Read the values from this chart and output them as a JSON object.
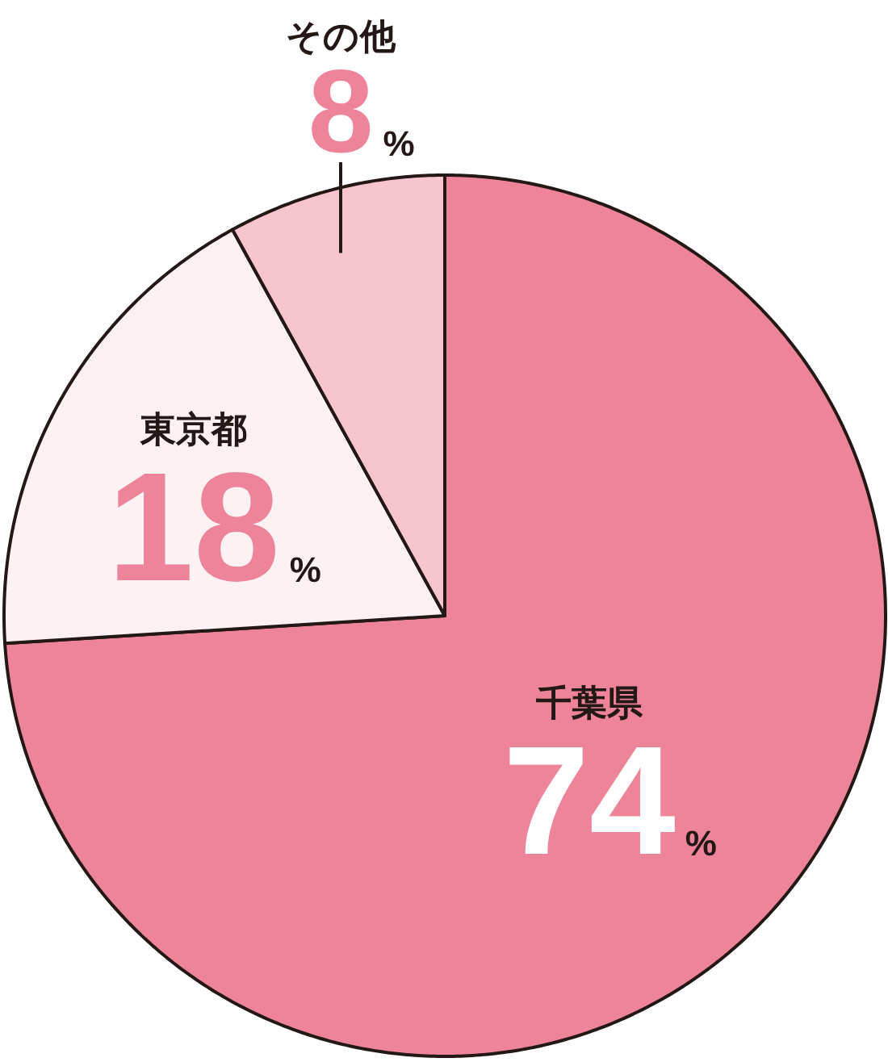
{
  "chart_data": {
    "type": "pie",
    "categories": [
      "千葉県",
      "東京都",
      "その他"
    ],
    "values": [
      74,
      18,
      8
    ],
    "colors": [
      "#ee8499",
      "#fdf2f3",
      "#f7c4cf"
    ],
    "value_labels": [
      "74%",
      "18%",
      "8%"
    ]
  }
}
